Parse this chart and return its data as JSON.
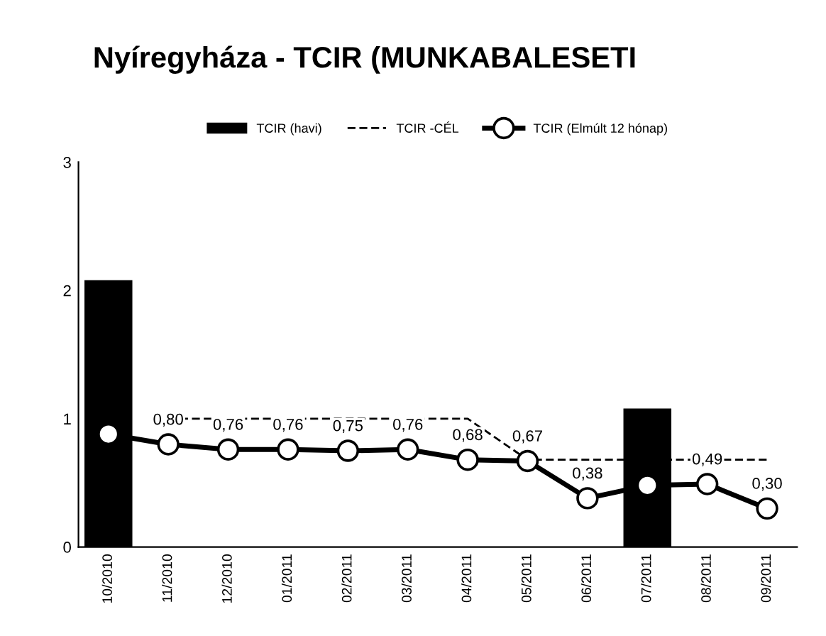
{
  "chart_data": {
    "type": "bar",
    "title": "Nyíregyháza - TCIR (MUNKABALESETI",
    "categories": [
      "10/2010",
      "11/2010",
      "12/2010",
      "01/2011",
      "02/2011",
      "03/2011",
      "04/2011",
      "05/2011",
      "06/2011",
      "07/2011",
      "08/2011",
      "09/2011"
    ],
    "series": [
      {
        "name": "TCIR (havi)",
        "color": "#000000",
        "values": [
          2.08,
          0,
          0,
          0,
          0,
          0,
          0,
          0,
          0,
          1.08,
          0,
          0
        ]
      },
      {
        "name": "TCIR -CÉL",
        "type": "line",
        "color": "#000000",
        "line_style": "dashed",
        "marker": "none",
        "values": [
          null,
          1,
          1,
          1,
          1,
          1,
          1,
          0.68,
          0.68,
          0.68,
          0.68,
          0.68
        ]
      },
      {
        "name": "TCIR (Elmúlt 12 hónap)",
        "type": "line",
        "color": "#000000",
        "line_style": "solid",
        "marker": "circle",
        "values": [
          0.88,
          0.8,
          0.76,
          0.76,
          0.75,
          0.76,
          0.68,
          0.67,
          0.38,
          0.48,
          0.49,
          0.3
        ],
        "value_labels": [
          null,
          "0,80",
          "0,76",
          "0,76",
          "0,75",
          "0,76",
          "0,68",
          "0,67",
          "0,38",
          null,
          "0,49",
          "0,30"
        ]
      }
    ],
    "ylim": [
      0,
      3
    ],
    "yticks": [
      0,
      1,
      2,
      3
    ],
    "grid": false,
    "legend": "top"
  }
}
